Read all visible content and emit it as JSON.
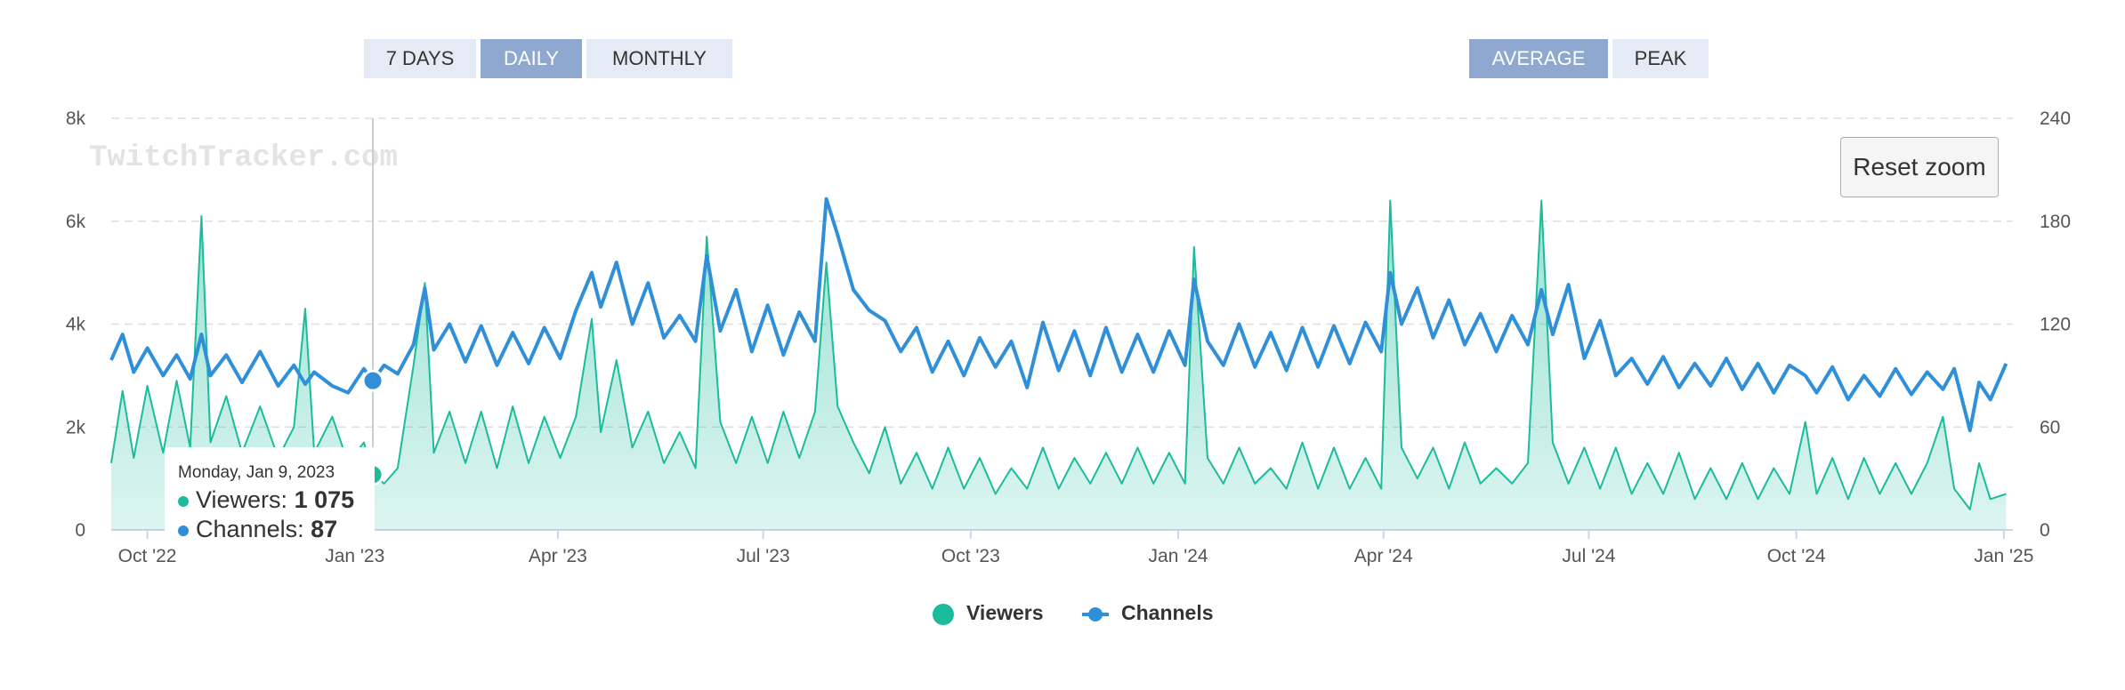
{
  "range_buttons": {
    "seven_days": "7 DAYS",
    "daily": "DAILY",
    "monthly": "MONTHLY",
    "active": "daily"
  },
  "stat_buttons": {
    "average": "AVERAGE",
    "peak": "PEAK",
    "active": "average"
  },
  "reset_zoom_label": "Reset zoom",
  "watermark": "TwitchTracker.com",
  "tooltip": {
    "date": "Monday, Jan 9, 2023",
    "viewers_label": "Viewers:",
    "viewers_value": "1 075",
    "channels_label": "Channels:",
    "channels_value": "87"
  },
  "legend": {
    "viewers": "Viewers",
    "channels": "Channels"
  },
  "colors": {
    "viewers": "#1abc9c",
    "channels": "#2f8fd8",
    "active_button": "#8fa8cf",
    "button": "#e4ebf4"
  },
  "chart_data": {
    "type": "area",
    "x_start": "2022-09-15",
    "x_end": "2025-01-05",
    "series": [
      {
        "name": "Viewers",
        "axis": "left",
        "style": "area",
        "points": [
          [
            "2022-09-15",
            1300
          ],
          [
            "2022-09-20",
            2700
          ],
          [
            "2022-09-25",
            1400
          ],
          [
            "2022-10-01",
            2800
          ],
          [
            "2022-10-08",
            1500
          ],
          [
            "2022-10-14",
            2900
          ],
          [
            "2022-10-20",
            1600
          ],
          [
            "2022-10-25",
            6100
          ],
          [
            "2022-10-29",
            1700
          ],
          [
            "2022-11-05",
            2600
          ],
          [
            "2022-11-12",
            1500
          ],
          [
            "2022-11-20",
            2400
          ],
          [
            "2022-11-28",
            1400
          ],
          [
            "2022-12-05",
            2000
          ],
          [
            "2022-12-10",
            4300
          ],
          [
            "2022-12-14",
            1500
          ],
          [
            "2022-12-22",
            2200
          ],
          [
            "2022-12-29",
            1300
          ],
          [
            "2023-01-05",
            1700
          ],
          [
            "2023-01-09",
            1075
          ],
          [
            "2023-01-14",
            900
          ],
          [
            "2023-01-20",
            1200
          ],
          [
            "2023-01-27",
            3200
          ],
          [
            "2023-02-01",
            4800
          ],
          [
            "2023-02-05",
            1500
          ],
          [
            "2023-02-12",
            2300
          ],
          [
            "2023-02-19",
            1300
          ],
          [
            "2023-02-26",
            2300
          ],
          [
            "2023-03-05",
            1200
          ],
          [
            "2023-03-12",
            2400
          ],
          [
            "2023-03-19",
            1300
          ],
          [
            "2023-03-26",
            2200
          ],
          [
            "2023-04-02",
            1400
          ],
          [
            "2023-04-09",
            2200
          ],
          [
            "2023-04-16",
            4100
          ],
          [
            "2023-04-20",
            1900
          ],
          [
            "2023-04-27",
            3300
          ],
          [
            "2023-05-04",
            1600
          ],
          [
            "2023-05-11",
            2300
          ],
          [
            "2023-05-18",
            1300
          ],
          [
            "2023-05-25",
            1900
          ],
          [
            "2023-06-01",
            1200
          ],
          [
            "2023-06-06",
            5700
          ],
          [
            "2023-06-12",
            2100
          ],
          [
            "2023-06-19",
            1300
          ],
          [
            "2023-06-26",
            2200
          ],
          [
            "2023-07-03",
            1300
          ],
          [
            "2023-07-10",
            2300
          ],
          [
            "2023-07-17",
            1400
          ],
          [
            "2023-07-24",
            2300
          ],
          [
            "2023-07-29",
            5200
          ],
          [
            "2023-08-03",
            2400
          ],
          [
            "2023-08-10",
            1700
          ],
          [
            "2023-08-17",
            1100
          ],
          [
            "2023-08-24",
            2000
          ],
          [
            "2023-08-31",
            900
          ],
          [
            "2023-09-07",
            1500
          ],
          [
            "2023-09-14",
            800
          ],
          [
            "2023-09-21",
            1600
          ],
          [
            "2023-09-28",
            800
          ],
          [
            "2023-10-05",
            1400
          ],
          [
            "2023-10-12",
            700
          ],
          [
            "2023-10-19",
            1200
          ],
          [
            "2023-10-26",
            800
          ],
          [
            "2023-11-02",
            1600
          ],
          [
            "2023-11-09",
            800
          ],
          [
            "2023-11-16",
            1400
          ],
          [
            "2023-11-23",
            900
          ],
          [
            "2023-11-30",
            1500
          ],
          [
            "2023-12-07",
            900
          ],
          [
            "2023-12-14",
            1600
          ],
          [
            "2023-12-21",
            900
          ],
          [
            "2023-12-28",
            1500
          ],
          [
            "2024-01-04",
            900
          ],
          [
            "2024-01-08",
            5500
          ],
          [
            "2024-01-14",
            1400
          ],
          [
            "2024-01-21",
            900
          ],
          [
            "2024-01-28",
            1600
          ],
          [
            "2024-02-04",
            900
          ],
          [
            "2024-02-11",
            1200
          ],
          [
            "2024-02-18",
            800
          ],
          [
            "2024-02-25",
            1700
          ],
          [
            "2024-03-03",
            800
          ],
          [
            "2024-03-10",
            1600
          ],
          [
            "2024-03-17",
            800
          ],
          [
            "2024-03-24",
            1400
          ],
          [
            "2024-03-31",
            800
          ],
          [
            "2024-04-04",
            6400
          ],
          [
            "2024-04-09",
            1600
          ],
          [
            "2024-04-16",
            1000
          ],
          [
            "2024-04-23",
            1600
          ],
          [
            "2024-04-30",
            800
          ],
          [
            "2024-05-07",
            1700
          ],
          [
            "2024-05-14",
            900
          ],
          [
            "2024-05-21",
            1200
          ],
          [
            "2024-05-28",
            900
          ],
          [
            "2024-06-04",
            1300
          ],
          [
            "2024-06-10",
            6400
          ],
          [
            "2024-06-15",
            1700
          ],
          [
            "2024-06-22",
            900
          ],
          [
            "2024-06-29",
            1600
          ],
          [
            "2024-07-06",
            800
          ],
          [
            "2024-07-13",
            1600
          ],
          [
            "2024-07-20",
            700
          ],
          [
            "2024-07-27",
            1300
          ],
          [
            "2024-08-03",
            700
          ],
          [
            "2024-08-10",
            1500
          ],
          [
            "2024-08-17",
            600
          ],
          [
            "2024-08-24",
            1200
          ],
          [
            "2024-08-31",
            600
          ],
          [
            "2024-09-07",
            1300
          ],
          [
            "2024-09-14",
            600
          ],
          [
            "2024-09-21",
            1200
          ],
          [
            "2024-09-28",
            700
          ],
          [
            "2024-10-05",
            2100
          ],
          [
            "2024-10-10",
            700
          ],
          [
            "2024-10-17",
            1400
          ],
          [
            "2024-10-24",
            600
          ],
          [
            "2024-10-31",
            1400
          ],
          [
            "2024-11-07",
            700
          ],
          [
            "2024-11-14",
            1300
          ],
          [
            "2024-11-21",
            700
          ],
          [
            "2024-11-28",
            1300
          ],
          [
            "2024-12-05",
            2200
          ],
          [
            "2024-12-10",
            800
          ],
          [
            "2024-12-17",
            400
          ],
          [
            "2024-12-21",
            1300
          ],
          [
            "2024-12-26",
            600
          ],
          [
            "2025-01-02",
            700
          ]
        ]
      },
      {
        "name": "Channels",
        "axis": "right",
        "style": "line",
        "points": [
          [
            "2022-09-15",
            99
          ],
          [
            "2022-09-20",
            114
          ],
          [
            "2022-09-25",
            92
          ],
          [
            "2022-10-01",
            106
          ],
          [
            "2022-10-08",
            90
          ],
          [
            "2022-10-14",
            102
          ],
          [
            "2022-10-20",
            88
          ],
          [
            "2022-10-25",
            114
          ],
          [
            "2022-10-29",
            90
          ],
          [
            "2022-11-05",
            102
          ],
          [
            "2022-11-12",
            86
          ],
          [
            "2022-11-20",
            104
          ],
          [
            "2022-11-28",
            84
          ],
          [
            "2022-12-05",
            96
          ],
          [
            "2022-12-10",
            85
          ],
          [
            "2022-12-14",
            92
          ],
          [
            "2022-12-22",
            84
          ],
          [
            "2022-12-29",
            80
          ],
          [
            "2023-01-05",
            94
          ],
          [
            "2023-01-09",
            87
          ],
          [
            "2023-01-14",
            96
          ],
          [
            "2023-01-20",
            91
          ],
          [
            "2023-01-27",
            108
          ],
          [
            "2023-02-01",
            141
          ],
          [
            "2023-02-05",
            105
          ],
          [
            "2023-02-12",
            120
          ],
          [
            "2023-02-19",
            98
          ],
          [
            "2023-02-26",
            119
          ],
          [
            "2023-03-05",
            96
          ],
          [
            "2023-03-12",
            115
          ],
          [
            "2023-03-19",
            97
          ],
          [
            "2023-03-26",
            118
          ],
          [
            "2023-04-02",
            100
          ],
          [
            "2023-04-09",
            128
          ],
          [
            "2023-04-16",
            150
          ],
          [
            "2023-04-20",
            130
          ],
          [
            "2023-04-27",
            156
          ],
          [
            "2023-05-04",
            120
          ],
          [
            "2023-05-11",
            144
          ],
          [
            "2023-05-18",
            112
          ],
          [
            "2023-05-25",
            125
          ],
          [
            "2023-06-01",
            110
          ],
          [
            "2023-06-06",
            160
          ],
          [
            "2023-06-12",
            116
          ],
          [
            "2023-06-19",
            140
          ],
          [
            "2023-06-26",
            104
          ],
          [
            "2023-07-03",
            131
          ],
          [
            "2023-07-10",
            102
          ],
          [
            "2023-07-17",
            127
          ],
          [
            "2023-07-24",
            110
          ],
          [
            "2023-07-29",
            193
          ],
          [
            "2023-08-03",
            172
          ],
          [
            "2023-08-10",
            140
          ],
          [
            "2023-08-17",
            128
          ],
          [
            "2023-08-24",
            122
          ],
          [
            "2023-08-31",
            104
          ],
          [
            "2023-09-07",
            118
          ],
          [
            "2023-09-14",
            92
          ],
          [
            "2023-09-21",
            110
          ],
          [
            "2023-09-28",
            90
          ],
          [
            "2023-10-05",
            112
          ],
          [
            "2023-10-12",
            95
          ],
          [
            "2023-10-19",
            110
          ],
          [
            "2023-10-26",
            83
          ],
          [
            "2023-11-02",
            121
          ],
          [
            "2023-11-09",
            93
          ],
          [
            "2023-11-16",
            116
          ],
          [
            "2023-11-23",
            90
          ],
          [
            "2023-11-30",
            118
          ],
          [
            "2023-12-07",
            92
          ],
          [
            "2023-12-14",
            114
          ],
          [
            "2023-12-21",
            92
          ],
          [
            "2023-12-28",
            116
          ],
          [
            "2024-01-04",
            96
          ],
          [
            "2024-01-08",
            146
          ],
          [
            "2024-01-14",
            110
          ],
          [
            "2024-01-21",
            96
          ],
          [
            "2024-01-28",
            120
          ],
          [
            "2024-02-04",
            95
          ],
          [
            "2024-02-11",
            115
          ],
          [
            "2024-02-18",
            93
          ],
          [
            "2024-02-25",
            118
          ],
          [
            "2024-03-03",
            95
          ],
          [
            "2024-03-10",
            119
          ],
          [
            "2024-03-17",
            97
          ],
          [
            "2024-03-24",
            121
          ],
          [
            "2024-03-31",
            104
          ],
          [
            "2024-04-04",
            150
          ],
          [
            "2024-04-09",
            120
          ],
          [
            "2024-04-16",
            141
          ],
          [
            "2024-04-23",
            112
          ],
          [
            "2024-04-30",
            134
          ],
          [
            "2024-05-07",
            108
          ],
          [
            "2024-05-14",
            126
          ],
          [
            "2024-05-21",
            104
          ],
          [
            "2024-05-28",
            125
          ],
          [
            "2024-06-04",
            108
          ],
          [
            "2024-06-10",
            140
          ],
          [
            "2024-06-15",
            114
          ],
          [
            "2024-06-22",
            143
          ],
          [
            "2024-06-29",
            100
          ],
          [
            "2024-07-06",
            122
          ],
          [
            "2024-07-13",
            90
          ],
          [
            "2024-07-20",
            100
          ],
          [
            "2024-07-27",
            85
          ],
          [
            "2024-08-03",
            101
          ],
          [
            "2024-08-10",
            83
          ],
          [
            "2024-08-17",
            97
          ],
          [
            "2024-08-24",
            84
          ],
          [
            "2024-08-31",
            100
          ],
          [
            "2024-09-07",
            82
          ],
          [
            "2024-09-14",
            97
          ],
          [
            "2024-09-21",
            80
          ],
          [
            "2024-09-28",
            96
          ],
          [
            "2024-10-05",
            90
          ],
          [
            "2024-10-10",
            80
          ],
          [
            "2024-10-17",
            95
          ],
          [
            "2024-10-24",
            76
          ],
          [
            "2024-10-31",
            90
          ],
          [
            "2024-11-07",
            78
          ],
          [
            "2024-11-14",
            94
          ],
          [
            "2024-11-21",
            79
          ],
          [
            "2024-11-28",
            92
          ],
          [
            "2024-12-05",
            82
          ],
          [
            "2024-12-10",
            94
          ],
          [
            "2024-12-17",
            58
          ],
          [
            "2024-12-21",
            86
          ],
          [
            "2024-12-26",
            76
          ],
          [
            "2025-01-02",
            97
          ]
        ]
      }
    ],
    "y_left": {
      "min": 0,
      "max": 8000,
      "ticks": [
        0,
        2000,
        4000,
        6000,
        8000
      ],
      "tick_labels": [
        "0",
        "2k",
        "4k",
        "6k",
        "8k"
      ]
    },
    "y_right": {
      "min": 0,
      "max": 240,
      "ticks": [
        0,
        60,
        120,
        180,
        240
      ],
      "tick_labels": [
        "0",
        "60",
        "120",
        "180",
        "240"
      ]
    },
    "x_ticks": [
      {
        "date": "2022-10-01",
        "label": "Oct '22"
      },
      {
        "date": "2023-01-01",
        "label": "Jan '23"
      },
      {
        "date": "2023-04-01",
        "label": "Apr '23"
      },
      {
        "date": "2023-07-01",
        "label": "Jul '23"
      },
      {
        "date": "2023-10-01",
        "label": "Oct '23"
      },
      {
        "date": "2024-01-01",
        "label": "Jan '24"
      },
      {
        "date": "2024-04-01",
        "label": "Apr '24"
      },
      {
        "date": "2024-07-01",
        "label": "Jul '24"
      },
      {
        "date": "2024-10-01",
        "label": "Oct '24"
      },
      {
        "date": "2025-01-01",
        "label": "Jan '25"
      }
    ],
    "crosshair_date": "2023-01-09",
    "grid": true,
    "legend_position": "bottom-center"
  }
}
